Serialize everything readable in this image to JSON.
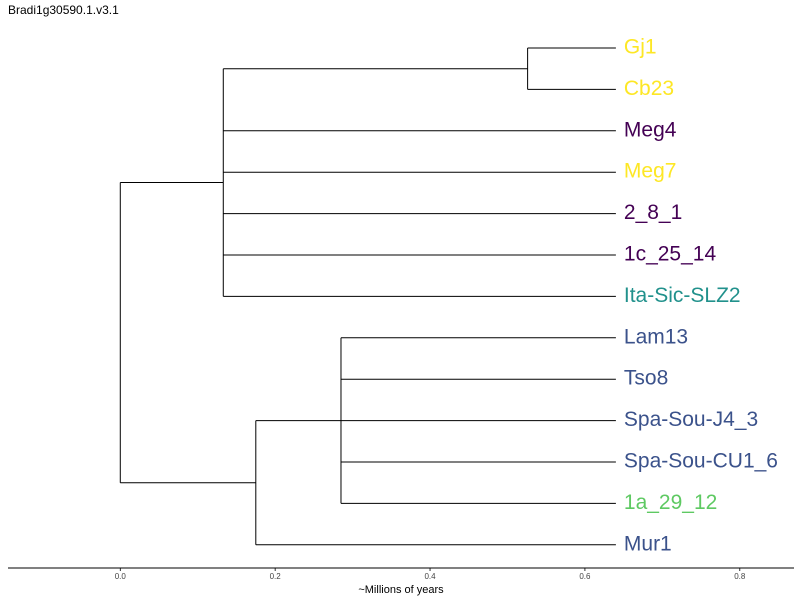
{
  "chart_data": {
    "type": "dendrogram",
    "title": "Bradi1g30590.1.v3.1",
    "xlabel": "~Millions of years",
    "xlim": [
      -0.145,
      0.87
    ],
    "xticks": [
      0.0,
      0.2,
      0.4,
      0.6,
      0.8
    ],
    "xtick_labels": [
      "0.0",
      "0.2",
      "0.4",
      "0.6",
      "0.8"
    ],
    "colors": {
      "yellow": "#fde725",
      "purple": "#440154",
      "teal": "#21918c",
      "blue": "#3b528b",
      "green": "#5ec962"
    },
    "leaves": [
      {
        "name": "Gj1",
        "color": "yellow"
      },
      {
        "name": "Cb23",
        "color": "yellow"
      },
      {
        "name": "Meg4",
        "color": "purple"
      },
      {
        "name": "Meg7",
        "color": "yellow"
      },
      {
        "name": "2_8_1",
        "color": "purple"
      },
      {
        "name": "1c_25_14",
        "color": "purple"
      },
      {
        "name": "Ita-Sic-SLZ2",
        "color": "teal"
      },
      {
        "name": "Lam13",
        "color": "blue"
      },
      {
        "name": "Tso8",
        "color": "blue"
      },
      {
        "name": "Spa-Sou-J4_3",
        "color": "blue"
      },
      {
        "name": "Spa-Sou-CU1_6",
        "color": "blue"
      },
      {
        "name": "1a_29_12",
        "color": "green"
      },
      {
        "name": "Mur1",
        "color": "blue"
      }
    ],
    "tree": {
      "height": 0.0,
      "children": [
        {
          "height": 0.133,
          "children": [
            {
              "height": 0.526,
              "children": [
                {
                  "leaf": 0
                },
                {
                  "leaf": 1
                }
              ]
            },
            {
              "leaf": 2
            },
            {
              "leaf": 3
            },
            {
              "leaf": 4
            },
            {
              "leaf": 5
            },
            {
              "leaf": 6
            }
          ]
        },
        {
          "height": 0.175,
          "children": [
            {
              "height": 0.285,
              "children": [
                {
                  "leaf": 7
                },
                {
                  "leaf": 8
                },
                {
                  "leaf": 9
                },
                {
                  "leaf": 10
                },
                {
                  "leaf": 11
                }
              ]
            },
            {
              "leaf": 12
            }
          ]
        }
      ]
    },
    "leaf_x": 0.64
  }
}
